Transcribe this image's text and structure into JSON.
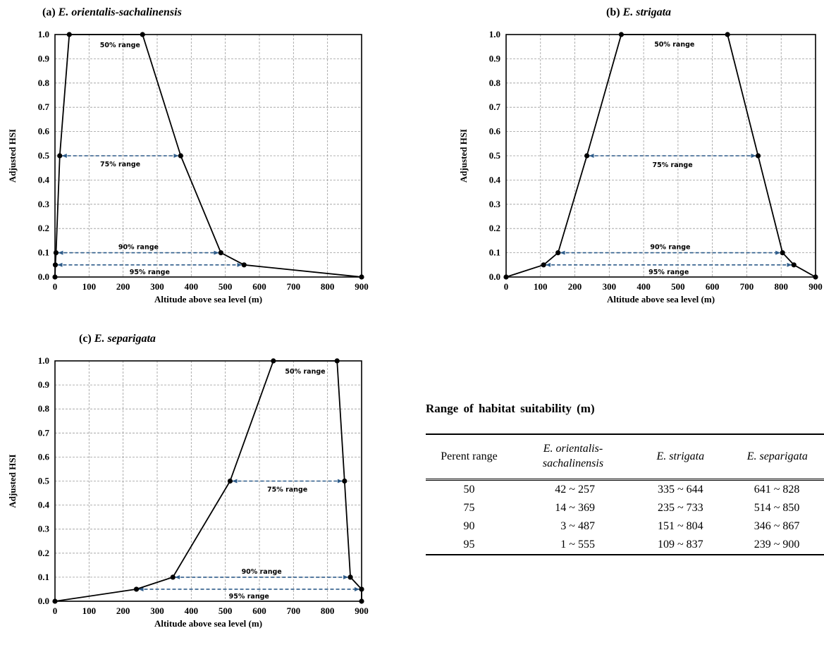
{
  "chart_data": [
    {
      "type": "line",
      "panel_label": "(a)",
      "title": "E.  orientalis-sachalinensis",
      "xlabel": "Altitude above sea level (m)",
      "ylabel": "Adjusted HSI",
      "xlim": [
        0,
        900
      ],
      "ylim": [
        0,
        1.0
      ],
      "xticks": [
        "0",
        "100",
        "200",
        "300",
        "400",
        "500",
        "600",
        "700",
        "800",
        "900"
      ],
      "yticks": [
        "0.0",
        "0.1",
        "0.2",
        "0.3",
        "0.4",
        "0.5",
        "0.6",
        "0.7",
        "0.8",
        "0.9",
        "1.0"
      ],
      "grid": true,
      "x": [
        0,
        1,
        3,
        14,
        42,
        257,
        369,
        487,
        555,
        900
      ],
      "y": [
        0,
        0.05,
        0.1,
        0.5,
        1.0,
        1.0,
        0.5,
        0.1,
        0.05,
        0
      ],
      "ranges": [
        {
          "label": "50% range",
          "from": 42,
          "to": 257,
          "y": 1.0,
          "arrow": false
        },
        {
          "label": "75% range",
          "from": 14,
          "to": 369,
          "y": 0.5,
          "arrow": true
        },
        {
          "label": "90% range",
          "from": 3,
          "to": 487,
          "y": 0.1,
          "arrow": true
        },
        {
          "label": "95% range",
          "from": 1,
          "to": 555,
          "y": 0.05,
          "arrow": true
        }
      ]
    },
    {
      "type": "line",
      "panel_label": "(b)",
      "title": "E.  strigata",
      "xlabel": "Altitude above sea level (m)",
      "ylabel": "Adjusted HSI",
      "xlim": [
        0,
        900
      ],
      "ylim": [
        0,
        1.0
      ],
      "xticks": [
        "0",
        "100",
        "200",
        "300",
        "400",
        "500",
        "600",
        "700",
        "800",
        "900"
      ],
      "yticks": [
        "0.0",
        "0.1",
        "0.2",
        "0.3",
        "0.4",
        "0.5",
        "0.6",
        "0.7",
        "0.8",
        "0.9",
        "1.0"
      ],
      "grid": true,
      "x": [
        0,
        109,
        151,
        235,
        335,
        644,
        733,
        804,
        837,
        900
      ],
      "y": [
        0,
        0.05,
        0.1,
        0.5,
        1.0,
        1.0,
        0.5,
        0.1,
        0.05,
        0
      ],
      "ranges": [
        {
          "label": "50% range",
          "from": 335,
          "to": 644,
          "y": 1.0,
          "arrow": false
        },
        {
          "label": "75% range",
          "from": 235,
          "to": 733,
          "y": 0.5,
          "arrow": true
        },
        {
          "label": "90% range",
          "from": 151,
          "to": 804,
          "y": 0.1,
          "arrow": true
        },
        {
          "label": "95% range",
          "from": 109,
          "to": 837,
          "y": 0.05,
          "arrow": true
        }
      ]
    },
    {
      "type": "line",
      "panel_label": "(c)",
      "title": "E.  separigata",
      "xlabel": "Altitude above sea level (m)",
      "ylabel": "Adjusted HSI",
      "xlim": [
        0,
        900
      ],
      "ylim": [
        0,
        1.0
      ],
      "xticks": [
        "0",
        "100",
        "200",
        "300",
        "400",
        "500",
        "600",
        "700",
        "800",
        "900"
      ],
      "yticks": [
        "0.0",
        "0.1",
        "0.2",
        "0.3",
        "0.4",
        "0.5",
        "0.6",
        "0.7",
        "0.8",
        "0.9",
        "1.0"
      ],
      "grid": true,
      "x": [
        0,
        239,
        346,
        514,
        641,
        828,
        850,
        867,
        900,
        900
      ],
      "y": [
        0,
        0.05,
        0.1,
        0.5,
        1.0,
        1.0,
        0.5,
        0.1,
        0.05,
        0
      ],
      "ranges": [
        {
          "label": "50% range",
          "from": 641,
          "to": 828,
          "y": 1.0,
          "arrow": false
        },
        {
          "label": "75% range",
          "from": 514,
          "to": 850,
          "y": 0.5,
          "arrow": true
        },
        {
          "label": "90% range",
          "from": 346,
          "to": 867,
          "y": 0.1,
          "arrow": true
        },
        {
          "label": "95% range",
          "from": 239,
          "to": 900,
          "y": 0.05,
          "arrow": true
        }
      ]
    }
  ],
  "table": {
    "title": "Range  of  habitat  suitability  (m)",
    "headers": [
      "Perent  range",
      "E.  orientalis-\nsachalinensis",
      "E.  strigata",
      "E.  separigata"
    ],
    "rows": [
      [
        "50",
        "42 ~ 257",
        "335 ~ 644",
        "641 ~ 828"
      ],
      [
        "75",
        "14 ~ 369",
        "235 ~ 733",
        "514 ~ 850"
      ],
      [
        "90",
        "3 ~ 487",
        "151 ~ 804",
        "346 ~ 867"
      ],
      [
        "95",
        "1 ~ 555",
        "109 ~ 837",
        "239 ~ 900"
      ]
    ]
  },
  "colors": {
    "line": "#000000",
    "range_arrow": "#2E5C8A",
    "grid": "#9a9a9a"
  }
}
